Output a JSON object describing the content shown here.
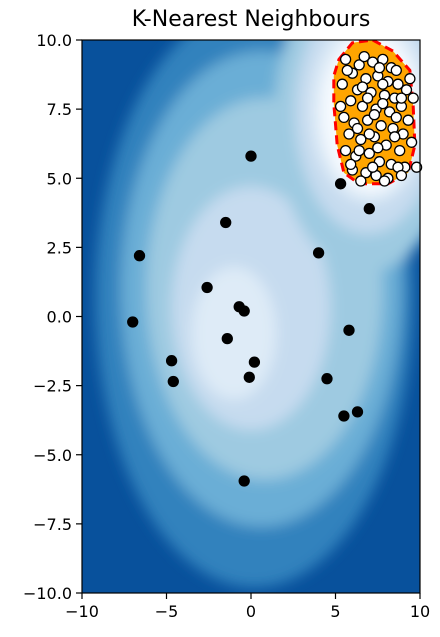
{
  "chart_data": {
    "type": "scatter",
    "title": "K-Nearest Neighbours",
    "xlabel": "",
    "ylabel": "",
    "xlim": [
      -10,
      10
    ],
    "ylim": [
      -10,
      10
    ],
    "x_ticks": [
      -10,
      -5,
      0,
      5,
      10
    ],
    "x_tick_labels": [
      "−10",
      "−5",
      "0",
      "5",
      "10"
    ],
    "y_ticks": [
      10,
      7.5,
      5,
      2.5,
      0,
      -2.5,
      -5,
      -7.5,
      -10
    ],
    "y_tick_labels": [
      "10.0",
      "7.5",
      "5.0",
      "2.5",
      "0.0",
      "−2.5",
      "−5.0",
      "−7.5",
      "−10.0"
    ],
    "grid": false,
    "background_colors": [
      "#08519c",
      "#3182bd",
      "#6baed6",
      "#9ecae1",
      "#c6dbef",
      "#deebf7",
      "#f7fbff"
    ],
    "decision_region": {
      "fill": "#ffa500",
      "edge": "#ff0000",
      "boundary": [
        [
          5.2,
          9.3
        ],
        [
          6.0,
          9.9
        ],
        [
          7.2,
          10.0
        ],
        [
          8.4,
          9.6
        ],
        [
          9.4,
          8.9
        ],
        [
          9.6,
          7.6
        ],
        [
          9.7,
          6.2
        ],
        [
          9.3,
          5.2
        ],
        [
          8.1,
          4.8
        ],
        [
          6.4,
          4.8
        ],
        [
          5.5,
          5.2
        ],
        [
          5.1,
          6.2
        ],
        [
          4.9,
          7.7
        ],
        [
          4.9,
          8.7
        ]
      ]
    },
    "series": [
      {
        "marker_fill": "#000000",
        "marker_edge": "#000000",
        "points": [
          [
            0.0,
            5.8
          ],
          [
            -1.5,
            3.4
          ],
          [
            4.0,
            2.3
          ],
          [
            -6.6,
            2.2
          ],
          [
            -2.6,
            1.05
          ],
          [
            -0.7,
            0.35
          ],
          [
            -0.4,
            0.2
          ],
          [
            -7.0,
            -0.2
          ],
          [
            5.8,
            -0.5
          ],
          [
            -1.4,
            -0.8
          ],
          [
            -4.7,
            -1.6
          ],
          [
            0.2,
            -1.65
          ],
          [
            -4.6,
            -2.35
          ],
          [
            -0.1,
            -2.2
          ],
          [
            4.5,
            -2.25
          ],
          [
            6.3,
            -3.45
          ],
          [
            5.5,
            -3.6
          ],
          [
            -0.4,
            -5.95
          ],
          [
            5.3,
            4.8
          ],
          [
            7.0,
            3.9
          ]
        ]
      },
      {
        "marker_fill": "#ffffff",
        "marker_edge": "#000000",
        "points": [
          [
            5.6,
            9.3
          ],
          [
            6.4,
            9.1
          ],
          [
            7.2,
            9.2
          ],
          [
            7.8,
            9.3
          ],
          [
            8.3,
            9.0
          ],
          [
            6.0,
            8.8
          ],
          [
            6.8,
            8.6
          ],
          [
            7.5,
            8.7
          ],
          [
            8.1,
            8.5
          ],
          [
            8.7,
            8.4
          ],
          [
            9.2,
            8.2
          ],
          [
            5.4,
            8.4
          ],
          [
            6.3,
            8.2
          ],
          [
            7.1,
            8.1
          ],
          [
            7.9,
            8.0
          ],
          [
            8.5,
            7.9
          ],
          [
            9.6,
            7.9
          ],
          [
            5.9,
            7.8
          ],
          [
            6.6,
            7.6
          ],
          [
            7.4,
            7.5
          ],
          [
            8.2,
            7.4
          ],
          [
            8.9,
            7.6
          ],
          [
            9.3,
            7.1
          ],
          [
            5.5,
            7.2
          ],
          [
            6.1,
            7.0
          ],
          [
            6.9,
            7.1
          ],
          [
            7.7,
            6.9
          ],
          [
            8.4,
            6.8
          ],
          [
            9.0,
            6.6
          ],
          [
            5.8,
            6.6
          ],
          [
            6.5,
            6.4
          ],
          [
            7.3,
            6.5
          ],
          [
            8.0,
            6.2
          ],
          [
            8.8,
            6.0
          ],
          [
            9.5,
            6.3
          ],
          [
            5.6,
            6.0
          ],
          [
            6.2,
            5.8
          ],
          [
            7.0,
            5.9
          ],
          [
            7.6,
            5.6
          ],
          [
            8.3,
            5.5
          ],
          [
            9.1,
            5.4
          ],
          [
            6.0,
            5.3
          ],
          [
            6.8,
            5.2
          ],
          [
            7.4,
            5.1
          ],
          [
            8.1,
            5.0
          ],
          [
            8.7,
            5.4
          ],
          [
            6.5,
            4.9
          ],
          [
            7.9,
            4.9
          ],
          [
            9.8,
            5.4
          ],
          [
            5.7,
            8.9
          ],
          [
            6.7,
            9.4
          ],
          [
            7.6,
            9.0
          ],
          [
            8.6,
            8.9
          ],
          [
            9.4,
            8.6
          ],
          [
            6.9,
            7.9
          ],
          [
            7.3,
            7.3
          ],
          [
            8.6,
            7.2
          ],
          [
            6.3,
            6.8
          ],
          [
            7.5,
            6.1
          ],
          [
            8.5,
            6.5
          ],
          [
            5.9,
            5.5
          ],
          [
            7.2,
            5.4
          ],
          [
            8.9,
            5.1
          ],
          [
            6.6,
            8.3
          ],
          [
            7.8,
            8.4
          ],
          [
            5.3,
            7.6
          ],
          [
            8.9,
            7.9
          ],
          [
            7.0,
            6.6
          ],
          [
            6.4,
            6.0
          ],
          [
            7.8,
            7.7
          ]
        ]
      }
    ]
  }
}
